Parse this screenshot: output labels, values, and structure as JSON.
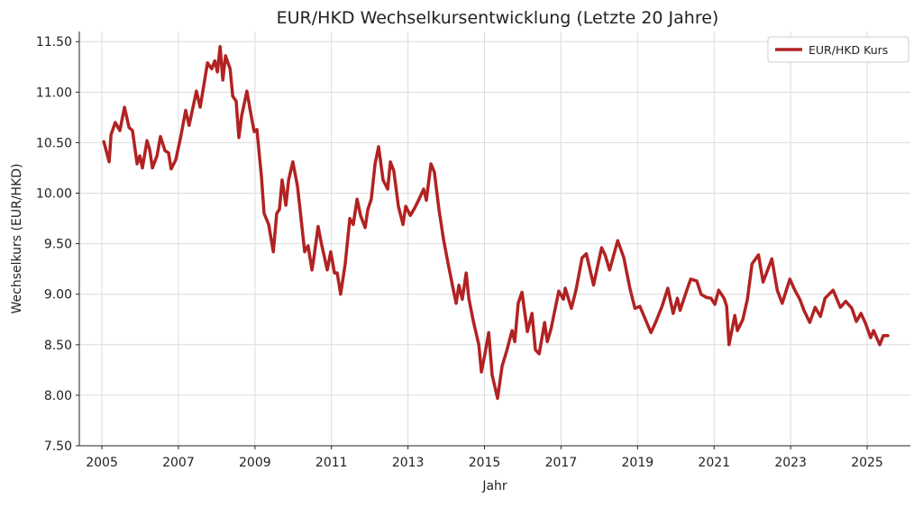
{
  "chart_data": {
    "type": "line",
    "title": "EUR/HKD Wechselkursentwicklung (Letzte 20 Jahre)",
    "xlabel": "Jahr",
    "ylabel": "Wechselkurs (EUR/HKD)",
    "xlim": [
      2004.41,
      2026.13
    ],
    "ylim": [
      7.5,
      11.6
    ],
    "grid": true,
    "legend_position": "top-right",
    "x_ticks": [
      2005,
      2007,
      2009,
      2011,
      2013,
      2015,
      2017,
      2019,
      2021,
      2023,
      2025
    ],
    "x_tick_labels": [
      "2005",
      "2007",
      "2009",
      "2011",
      "2013",
      "2015",
      "2017",
      "2019",
      "2021",
      "2023",
      "2025"
    ],
    "y_ticks": [
      7.5,
      8.0,
      8.5,
      9.0,
      9.5,
      10.0,
      10.5,
      11.0,
      11.5
    ],
    "y_tick_labels": [
      "7.50",
      "8.00",
      "8.50",
      "9.00",
      "9.50",
      "10.00",
      "10.50",
      "11.00",
      "11.50"
    ],
    "series": [
      {
        "name": "EUR/HKD Kurs",
        "color": "#b22222",
        "x": [
          2005.05,
          2005.19,
          2005.24,
          2005.35,
          2005.47,
          2005.59,
          2005.71,
          2005.8,
          2005.92,
          2005.99,
          2006.06,
          2006.18,
          2006.25,
          2006.32,
          2006.44,
          2006.53,
          2006.65,
          2006.74,
          2006.81,
          2006.93,
          2007.05,
          2007.19,
          2007.28,
          2007.47,
          2007.57,
          2007.76,
          2007.87,
          2007.95,
          2008.02,
          2008.09,
          2008.16,
          2008.23,
          2008.35,
          2008.42,
          2008.51,
          2008.58,
          2008.65,
          2008.79,
          2008.89,
          2008.98,
          2009.05,
          2009.17,
          2009.24,
          2009.36,
          2009.48,
          2009.57,
          2009.64,
          2009.71,
          2009.81,
          2009.88,
          2009.99,
          2010.11,
          2010.18,
          2010.3,
          2010.39,
          2010.49,
          2010.54,
          2010.65,
          2010.75,
          2010.89,
          2010.98,
          2011.08,
          2011.15,
          2011.24,
          2011.36,
          2011.48,
          2011.57,
          2011.67,
          2011.76,
          2011.88,
          2011.95,
          2012.04,
          2012.14,
          2012.23,
          2012.35,
          2012.47,
          2012.54,
          2012.63,
          2012.75,
          2012.87,
          2012.94,
          2013.06,
          2013.17,
          2013.25,
          2013.41,
          2013.48,
          2013.6,
          2013.69,
          2013.81,
          2013.93,
          2014.05,
          2014.16,
          2014.26,
          2014.33,
          2014.42,
          2014.52,
          2014.59,
          2014.71,
          2014.85,
          2014.92,
          2015.01,
          2015.11,
          2015.2,
          2015.34,
          2015.46,
          2015.58,
          2015.72,
          2015.79,
          2015.88,
          2015.98,
          2016.12,
          2016.24,
          2016.33,
          2016.43,
          2016.57,
          2016.64,
          2016.74,
          2016.94,
          2017.06,
          2017.11,
          2017.27,
          2017.39,
          2017.55,
          2017.66,
          2017.85,
          2018.06,
          2018.15,
          2018.27,
          2018.48,
          2018.64,
          2018.8,
          2018.93,
          2019.06,
          2019.35,
          2019.47,
          2019.64,
          2019.79,
          2019.93,
          2020.04,
          2020.11,
          2020.27,
          2020.39,
          2020.55,
          2020.66,
          2020.79,
          2020.92,
          2021.02,
          2021.12,
          2021.26,
          2021.33,
          2021.39,
          2021.54,
          2021.61,
          2021.75,
          2021.87,
          2021.99,
          2022.16,
          2022.28,
          2022.37,
          2022.51,
          2022.65,
          2022.78,
          2022.98,
          2023.11,
          2023.24,
          2023.35,
          2023.5,
          2023.64,
          2023.78,
          2023.9,
          2024.11,
          2024.3,
          2024.44,
          2024.6,
          2024.72,
          2024.84,
          2024.96,
          2025.09,
          2025.17,
          2025.33,
          2025.42,
          2025.54
        ],
        "values": [
          10.51,
          10.31,
          10.58,
          10.7,
          10.62,
          10.85,
          10.65,
          10.62,
          10.29,
          10.37,
          10.25,
          10.52,
          10.43,
          10.25,
          10.37,
          10.56,
          10.42,
          10.4,
          10.24,
          10.33,
          10.54,
          10.82,
          10.67,
          11.01,
          10.85,
          11.29,
          11.23,
          11.31,
          11.2,
          11.45,
          11.12,
          11.36,
          11.23,
          10.96,
          10.91,
          10.55,
          10.76,
          11.01,
          10.79,
          10.61,
          10.63,
          10.16,
          9.8,
          9.69,
          9.42,
          9.8,
          9.84,
          10.13,
          9.88,
          10.13,
          10.31,
          10.07,
          9.84,
          9.42,
          9.48,
          9.24,
          9.36,
          9.67,
          9.48,
          9.24,
          9.42,
          9.21,
          9.21,
          9.0,
          9.3,
          9.75,
          9.69,
          9.94,
          9.78,
          9.66,
          9.84,
          9.94,
          10.29,
          10.46,
          10.13,
          10.04,
          10.31,
          10.22,
          9.87,
          9.69,
          9.87,
          9.78,
          9.85,
          9.91,
          10.04,
          9.93,
          10.29,
          10.21,
          9.84,
          9.54,
          9.3,
          9.09,
          8.91,
          9.09,
          8.95,
          9.21,
          8.96,
          8.73,
          8.5,
          8.23,
          8.41,
          8.62,
          8.2,
          7.97,
          8.29,
          8.44,
          8.64,
          8.53,
          8.91,
          9.02,
          8.63,
          8.81,
          8.45,
          8.41,
          8.72,
          8.53,
          8.66,
          9.03,
          8.95,
          9.06,
          8.86,
          9.04,
          9.36,
          9.4,
          9.09,
          9.46,
          9.39,
          9.24,
          9.53,
          9.36,
          9.06,
          8.86,
          8.88,
          8.62,
          8.72,
          8.88,
          9.06,
          8.81,
          8.96,
          8.84,
          9.02,
          9.15,
          9.13,
          9.0,
          8.97,
          8.96,
          8.9,
          9.04,
          8.96,
          8.88,
          8.5,
          8.79,
          8.64,
          8.75,
          8.95,
          9.3,
          9.39,
          9.12,
          9.21,
          9.35,
          9.04,
          8.91,
          9.15,
          9.04,
          8.95,
          8.84,
          8.72,
          8.87,
          8.78,
          8.96,
          9.04,
          8.87,
          8.93,
          8.86,
          8.73,
          8.81,
          8.71,
          8.57,
          8.64,
          8.5,
          8.59,
          8.59
        ]
      }
    ]
  }
}
